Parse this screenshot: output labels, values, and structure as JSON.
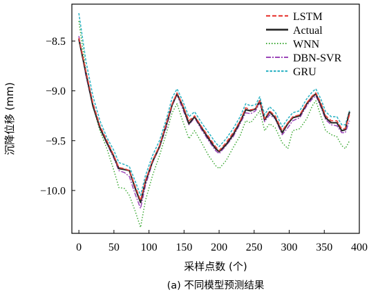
{
  "chart_data": {
    "type": "line",
    "caption": "(a) 不同模型预测结果",
    "xlabel": "采样点数 (个)",
    "ylabel": "沉降位移 (mm)",
    "xlim": [
      -10,
      400
    ],
    "ylim": [
      -10.43,
      -8.13
    ],
    "xticks": [
      0,
      50,
      100,
      150,
      200,
      250,
      300,
      350,
      400
    ],
    "yticks": [
      -10.0,
      -9.5,
      -9.0,
      -8.5
    ],
    "ytick_labels": [
      "−10.0",
      "−9.5",
      "−9.0",
      "−8.5"
    ],
    "legend_position": "top-right",
    "grid": false,
    "x": [
      0,
      10,
      20,
      30,
      40,
      50,
      57,
      65,
      72,
      80,
      88,
      95,
      105,
      115,
      125,
      133,
      140,
      148,
      157,
      165,
      175,
      185,
      195,
      200,
      210,
      220,
      230,
      238,
      245,
      252,
      258,
      265,
      272,
      280,
      290,
      298,
      305,
      315,
      325,
      333,
      338,
      345,
      352,
      360,
      368,
      375,
      380,
      386
    ],
    "series": [
      {
        "name": "LSTM",
        "color": "#e8413c",
        "dash": "6,3",
        "width": 1.6,
        "values": [
          -8.47,
          -8.8,
          -9.12,
          -9.35,
          -9.5,
          -9.65,
          -9.77,
          -9.78,
          -9.8,
          -9.95,
          -10.1,
          -9.9,
          -9.7,
          -9.55,
          -9.32,
          -9.13,
          -9.02,
          -9.14,
          -9.3,
          -9.25,
          -9.36,
          -9.46,
          -9.56,
          -9.6,
          -9.52,
          -9.42,
          -9.3,
          -9.17,
          -9.19,
          -9.18,
          -9.1,
          -9.28,
          -9.2,
          -9.25,
          -9.4,
          -9.32,
          -9.26,
          -9.24,
          -9.12,
          -9.05,
          -9.02,
          -9.12,
          -9.25,
          -9.3,
          -9.3,
          -9.38,
          -9.38,
          -9.24
        ]
      },
      {
        "name": "Actual",
        "color": "#2a2a2a",
        "dash": "",
        "width": 2.2,
        "values": [
          -8.48,
          -8.82,
          -9.15,
          -9.37,
          -9.52,
          -9.66,
          -9.78,
          -9.79,
          -9.8,
          -9.97,
          -10.12,
          -9.91,
          -9.71,
          -9.56,
          -9.33,
          -9.14,
          -9.03,
          -9.15,
          -9.33,
          -9.26,
          -9.37,
          -9.48,
          -9.58,
          -9.61,
          -9.54,
          -9.44,
          -9.31,
          -9.19,
          -9.2,
          -9.18,
          -9.1,
          -9.29,
          -9.21,
          -9.27,
          -9.42,
          -9.33,
          -9.27,
          -9.25,
          -9.13,
          -9.06,
          -9.03,
          -9.14,
          -9.27,
          -9.32,
          -9.32,
          -9.4,
          -9.39,
          -9.21
        ]
      },
      {
        "name": "WNN",
        "color": "#3aa832",
        "dash": "1.5,2.5",
        "width": 1.5,
        "values": [
          -8.3,
          -8.8,
          -9.15,
          -9.4,
          -9.58,
          -9.8,
          -9.97,
          -9.98,
          -10.05,
          -10.2,
          -10.37,
          -10.1,
          -9.85,
          -9.65,
          -9.42,
          -9.22,
          -9.13,
          -9.3,
          -9.48,
          -9.4,
          -9.52,
          -9.65,
          -9.75,
          -9.78,
          -9.7,
          -9.57,
          -9.45,
          -9.3,
          -9.32,
          -9.26,
          -9.2,
          -9.4,
          -9.33,
          -9.37,
          -9.52,
          -9.58,
          -9.4,
          -9.38,
          -9.28,
          -9.15,
          -9.1,
          -9.25,
          -9.4,
          -9.44,
          -9.46,
          -9.55,
          -9.58,
          -9.5
        ]
      },
      {
        "name": "DBN-SVR",
        "color": "#9b45b8",
        "dash": "7,2,2,2",
        "width": 1.5,
        "values": [
          -8.45,
          -8.85,
          -9.15,
          -9.38,
          -9.53,
          -9.68,
          -9.8,
          -9.82,
          -9.86,
          -10.03,
          -10.18,
          -9.95,
          -9.72,
          -9.57,
          -9.36,
          -9.15,
          -9.04,
          -9.18,
          -9.34,
          -9.27,
          -9.39,
          -9.5,
          -9.6,
          -9.63,
          -9.55,
          -9.46,
          -9.33,
          -9.22,
          -9.23,
          -9.2,
          -9.12,
          -9.31,
          -9.24,
          -9.28,
          -9.44,
          -9.37,
          -9.3,
          -9.27,
          -9.15,
          -9.08,
          -9.05,
          -9.16,
          -9.29,
          -9.34,
          -9.35,
          -9.42,
          -9.42,
          -9.3
        ]
      },
      {
        "name": "GRU",
        "color": "#33b5c6",
        "dash": "3.5,2",
        "width": 1.6,
        "values": [
          -8.22,
          -8.7,
          -9.05,
          -9.3,
          -9.47,
          -9.6,
          -9.72,
          -9.74,
          -9.76,
          -9.9,
          -10.05,
          -9.85,
          -9.65,
          -9.5,
          -9.28,
          -9.07,
          -8.98,
          -9.1,
          -9.26,
          -9.21,
          -9.32,
          -9.42,
          -9.52,
          -9.56,
          -9.48,
          -9.38,
          -9.26,
          -9.13,
          -9.15,
          -9.14,
          -9.06,
          -9.24,
          -9.16,
          -9.21,
          -9.36,
          -9.28,
          -9.22,
          -9.2,
          -9.08,
          -9.01,
          -8.98,
          -9.08,
          -9.21,
          -9.26,
          -9.26,
          -9.34,
          -9.34,
          -9.2
        ]
      }
    ]
  }
}
